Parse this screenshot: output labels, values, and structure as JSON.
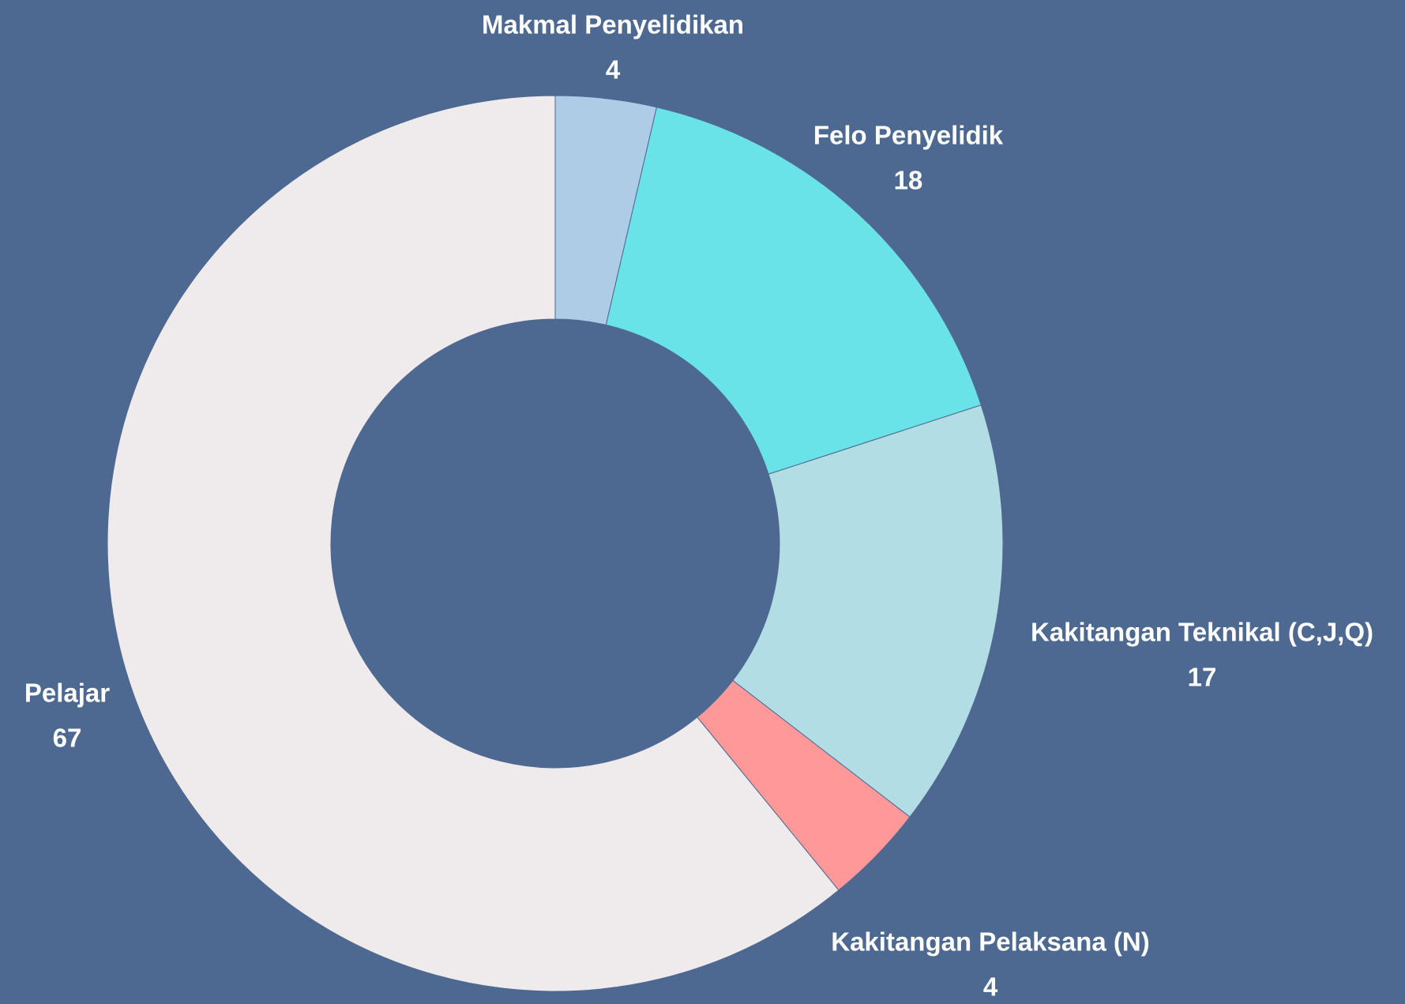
{
  "chart_data": {
    "type": "donut",
    "categories": [
      "Makmal Penyelidikan",
      "Felo Penyelidik",
      "Kakitangan Teknikal (C,J,Q)",
      "Kakitangan Pelaksana (N)",
      "Pelajar"
    ],
    "values": [
      4,
      18,
      17,
      4,
      67
    ],
    "colors": [
      "#aecce6",
      "#6ae3e8",
      "#b2dde4",
      "#ff9999",
      "#efeaec"
    ],
    "background": "#4e6991"
  }
}
